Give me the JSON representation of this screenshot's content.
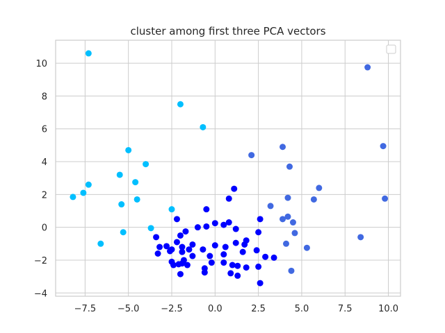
{
  "chart_data": {
    "type": "scatter",
    "title": "cluster among first three PCA vectors",
    "xlabel": "",
    "ylabel": "",
    "xlim": [
      -9.2,
      10.7
    ],
    "ylim": [
      -4.2,
      11.4
    ],
    "x_ticks": [
      -7.5,
      -5.0,
      -2.5,
      0.0,
      2.5,
      5.0,
      7.5,
      10.0
    ],
    "x_tick_labels": [
      "−7.5",
      "−5.0",
      "−2.5",
      "0.0",
      "2.5",
      "5.0",
      "7.5",
      "10.0"
    ],
    "y_ticks": [
      -4,
      -2,
      0,
      2,
      4,
      6,
      8,
      10
    ],
    "y_tick_labels": [
      "−4",
      "−2",
      "0",
      "2",
      "4",
      "6",
      "8",
      "10"
    ],
    "grid": true,
    "legend": "top-right, empty",
    "series": [
      {
        "color": "#00bfff",
        "points": [
          [
            -7.3,
            10.6
          ],
          [
            -2.0,
            7.5
          ],
          [
            -0.7,
            6.1
          ],
          [
            -5.0,
            4.7
          ],
          [
            -4.0,
            3.85
          ],
          [
            -5.5,
            3.2
          ],
          [
            -4.6,
            2.75
          ],
          [
            -7.3,
            2.6
          ],
          [
            -7.6,
            2.1
          ],
          [
            -8.2,
            1.85
          ],
          [
            -4.5,
            1.7
          ],
          [
            -5.4,
            1.4
          ],
          [
            -2.5,
            1.1
          ],
          [
            -3.7,
            -0.05
          ],
          [
            -5.3,
            -0.3
          ],
          [
            -6.6,
            -1.0
          ]
        ]
      },
      {
        "color": "#4169e1",
        "points": [
          [
            8.8,
            9.75
          ],
          [
            9.7,
            4.95
          ],
          [
            3.9,
            4.9
          ],
          [
            2.1,
            4.4
          ],
          [
            4.3,
            3.7
          ],
          [
            6.0,
            2.4
          ],
          [
            4.2,
            1.8
          ],
          [
            5.7,
            1.7
          ],
          [
            9.8,
            1.75
          ],
          [
            3.2,
            1.3
          ],
          [
            4.2,
            0.65
          ],
          [
            3.9,
            0.5
          ],
          [
            4.5,
            0.3
          ],
          [
            4.6,
            -0.35
          ],
          [
            8.4,
            -0.6
          ],
          [
            4.1,
            -1.0
          ],
          [
            5.3,
            -1.25
          ],
          [
            4.4,
            -2.65
          ]
        ]
      },
      {
        "color": "#0000ff",
        "points": [
          [
            1.1,
            2.35
          ],
          [
            0.8,
            1.75
          ],
          [
            -0.5,
            1.1
          ],
          [
            -2.2,
            0.5
          ],
          [
            2.6,
            0.5
          ],
          [
            0.8,
            0.3
          ],
          [
            0.5,
            0.15
          ],
          [
            0.0,
            0.25
          ],
          [
            -0.5,
            0.05
          ],
          [
            -1.0,
            0.0
          ],
          [
            1.2,
            -0.1
          ],
          [
            -1.7,
            -0.25
          ],
          [
            2.5,
            -0.3
          ],
          [
            -3.4,
            -0.6
          ],
          [
            -2.0,
            -0.5
          ],
          [
            1.8,
            -0.8
          ],
          [
            -2.2,
            -0.9
          ],
          [
            1.2,
            -0.95
          ],
          [
            -1.3,
            -1.05
          ],
          [
            0.0,
            -1.1
          ],
          [
            1.7,
            -1.05
          ],
          [
            -3.2,
            -1.2
          ],
          [
            -2.8,
            -1.15
          ],
          [
            0.6,
            -1.2
          ],
          [
            -1.9,
            -1.2
          ],
          [
            -2.5,
            -1.35
          ],
          [
            -1.5,
            -1.35
          ],
          [
            -0.7,
            -1.35
          ],
          [
            2.4,
            -1.4
          ],
          [
            -2.6,
            -1.45
          ],
          [
            -1.9,
            -1.5
          ],
          [
            1.6,
            -1.5
          ],
          [
            -3.3,
            -1.6
          ],
          [
            0.5,
            -1.65
          ],
          [
            -1.3,
            -1.75
          ],
          [
            -0.3,
            -1.75
          ],
          [
            2.9,
            -1.8
          ],
          [
            3.4,
            -1.85
          ],
          [
            -1.8,
            -2.0
          ],
          [
            -2.5,
            -2.1
          ],
          [
            -0.2,
            -2.15
          ],
          [
            0.5,
            -2.15
          ],
          [
            -1.9,
            -2.2
          ],
          [
            -2.4,
            -2.3
          ],
          [
            -2.1,
            -2.25
          ],
          [
            1.0,
            -2.3
          ],
          [
            -1.6,
            -2.3
          ],
          [
            1.3,
            -2.35
          ],
          [
            2.5,
            -2.4
          ],
          [
            1.8,
            -2.45
          ],
          [
            -0.6,
            -2.5
          ],
          [
            -0.6,
            -2.75
          ],
          [
            0.9,
            -2.8
          ],
          [
            -2.0,
            -2.85
          ],
          [
            1.3,
            -2.95
          ],
          [
            2.6,
            -3.4
          ]
        ]
      }
    ]
  }
}
